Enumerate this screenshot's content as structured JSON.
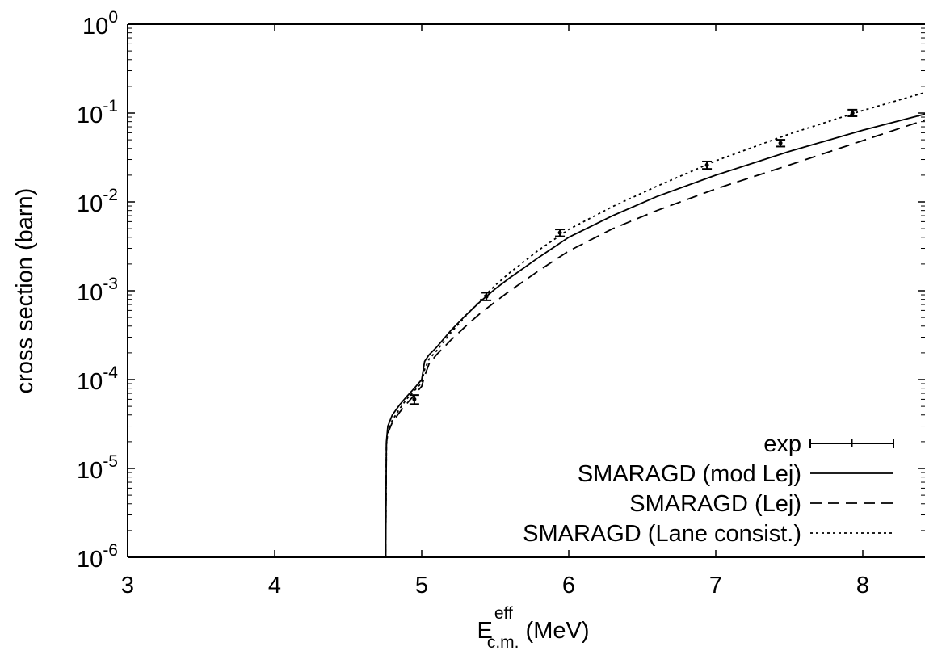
{
  "chart_data": {
    "type": "line",
    "xlabel": {
      "main": "E",
      "sup": "eff",
      "sub": "c.m.",
      "unit": " (MeV)"
    },
    "ylabel": "cross section (barn)",
    "xlim": [
      3,
      8.5
    ],
    "ylim": [
      1e-06,
      1
    ],
    "yscale": "log",
    "grid": false,
    "legend_position": "bottom-right",
    "x_ticks": [
      3,
      4,
      5,
      6,
      7,
      8
    ],
    "x_tick_labels": [
      "3",
      "4",
      "5",
      "6",
      "7",
      "8"
    ],
    "y_ticks": [
      {
        "value": 1e-06,
        "exp": "-6"
      },
      {
        "value": 1e-05,
        "exp": "-5"
      },
      {
        "value": 0.0001,
        "exp": "-4"
      },
      {
        "value": 0.001,
        "exp": "-3"
      },
      {
        "value": 0.01,
        "exp": "-2"
      },
      {
        "value": 0.1,
        "exp": "-1"
      },
      {
        "value": 1,
        "exp": "0"
      }
    ],
    "y_tick_base": "10",
    "series": [
      {
        "name": "exp",
        "kind": "errorbar",
        "x": [
          4.95,
          5.44,
          5.94,
          6.94,
          7.44,
          7.93
        ],
        "y": [
          6e-05,
          0.00086,
          0.0045,
          0.026,
          0.046,
          0.1
        ],
        "yerr_low": [
          5.3e-05,
          0.00078,
          0.0041,
          0.0235,
          0.042,
          0.092
        ],
        "yerr_high": [
          6.7e-05,
          0.00095,
          0.0049,
          0.0285,
          0.05,
          0.109
        ]
      },
      {
        "name": "SMARAGD (mod Lej)",
        "kind": "line",
        "dash": "solid",
        "x": [
          4.755,
          4.757,
          4.76,
          4.77,
          4.8,
          4.85,
          4.9,
          4.95,
          5.0,
          5.02,
          5.05,
          5.1,
          5.2,
          5.3,
          5.4,
          5.5,
          5.6,
          5.8,
          6.0,
          6.3,
          6.6,
          7.0,
          7.5,
          8.0,
          8.5
        ],
        "y": [
          1e-06,
          4e-06,
          2e-05,
          3e-05,
          4e-05,
          5.2e-05,
          6.5e-05,
          8e-05,
          0.0001,
          0.00016,
          0.00019,
          0.00023,
          0.00036,
          0.00053,
          0.00076,
          0.00105,
          0.0014,
          0.0024,
          0.004,
          0.007,
          0.0115,
          0.02,
          0.037,
          0.064,
          0.105
        ]
      },
      {
        "name": "SMARAGD (Lej)",
        "kind": "line",
        "dash": "dashed",
        "x": [
          4.755,
          4.757,
          4.76,
          4.77,
          4.8,
          4.85,
          4.9,
          4.95,
          5.0,
          5.02,
          5.05,
          5.1,
          5.2,
          5.3,
          5.4,
          5.5,
          5.6,
          5.8,
          6.0,
          6.3,
          6.6,
          7.0,
          7.5,
          8.0,
          8.5
        ],
        "y": [
          1e-06,
          4e-06,
          1.9e-05,
          2.5e-05,
          3.3e-05,
          4.3e-05,
          5.4e-05,
          6.7e-05,
          8.4e-05,
          0.00011,
          0.00015,
          0.00019,
          0.00028,
          0.0004,
          0.00056,
          0.00075,
          0.001,
          0.0017,
          0.0028,
          0.005,
          0.008,
          0.014,
          0.026,
          0.049,
          0.092
        ]
      },
      {
        "name": "SMARAGD (Lane consist.)",
        "kind": "line",
        "dash": "dotted",
        "x": [
          4.755,
          4.757,
          4.76,
          4.77,
          4.8,
          4.85,
          4.9,
          4.95,
          5.0,
          5.02,
          5.05,
          5.1,
          5.2,
          5.3,
          5.4,
          5.5,
          5.6,
          5.8,
          6.0,
          6.3,
          6.6,
          7.0,
          7.5,
          8.0,
          8.5
        ],
        "y": [
          1e-06,
          4e-06,
          1.8e-05,
          2.6e-05,
          3.5e-05,
          4.7e-05,
          6.1e-05,
          7.5e-05,
          9.2e-05,
          0.00013,
          0.00017,
          0.00021,
          0.00034,
          0.00052,
          0.00079,
          0.00115,
          0.0016,
          0.0029,
          0.0049,
          0.0089,
          0.015,
          0.029,
          0.058,
          0.107,
          0.185
        ]
      }
    ]
  }
}
